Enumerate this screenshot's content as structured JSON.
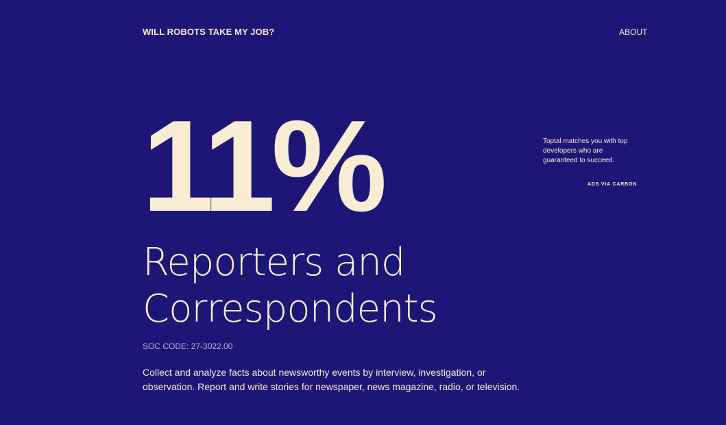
{
  "header": {
    "site_title": "WILL ROBOTS TAKE MY JOB?",
    "nav_about": "ABOUT"
  },
  "main": {
    "automation_risk": "11%",
    "job_title": "Reporters and Correspondents",
    "soc_code": "SOC CODE: 27-3022.00",
    "description": "Collect and analyze facts about newsworthy events by interview, investigation, or observation. Report and write stories for newspaper, news magazine, radio, or television."
  },
  "ad": {
    "text": "Toptal matches you with top developers who are guaranteed to succeed.",
    "via": "ADS VIA CARBON"
  },
  "colors": {
    "background": "#1e1676",
    "foreground": "#f8ecd2"
  }
}
